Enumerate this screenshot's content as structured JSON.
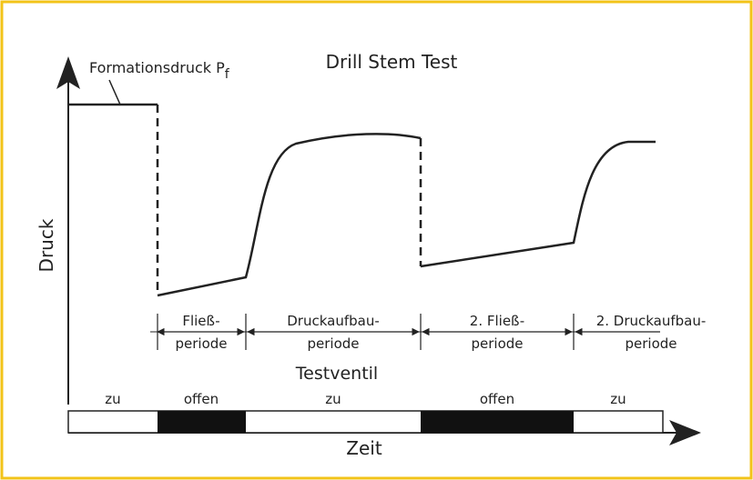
{
  "title": "Drill Stem Test",
  "y_label": "Druck",
  "x_label": "Zeit",
  "annotation": {
    "label": "Formationsdruck P",
    "subscript": "f"
  },
  "periods": [
    {
      "lines": [
        "Fließ-",
        "periode"
      ]
    },
    {
      "lines": [
        "Druckaufbau-",
        "periode"
      ]
    },
    {
      "lines": [
        "2. Fließ-",
        "periode"
      ]
    },
    {
      "lines": [
        "2. Druckaufbau-",
        "periode"
      ]
    }
  ],
  "valve_title": "Testventil",
  "valve_states": [
    "zu",
    "offen",
    "zu",
    "offen",
    "zu"
  ]
}
